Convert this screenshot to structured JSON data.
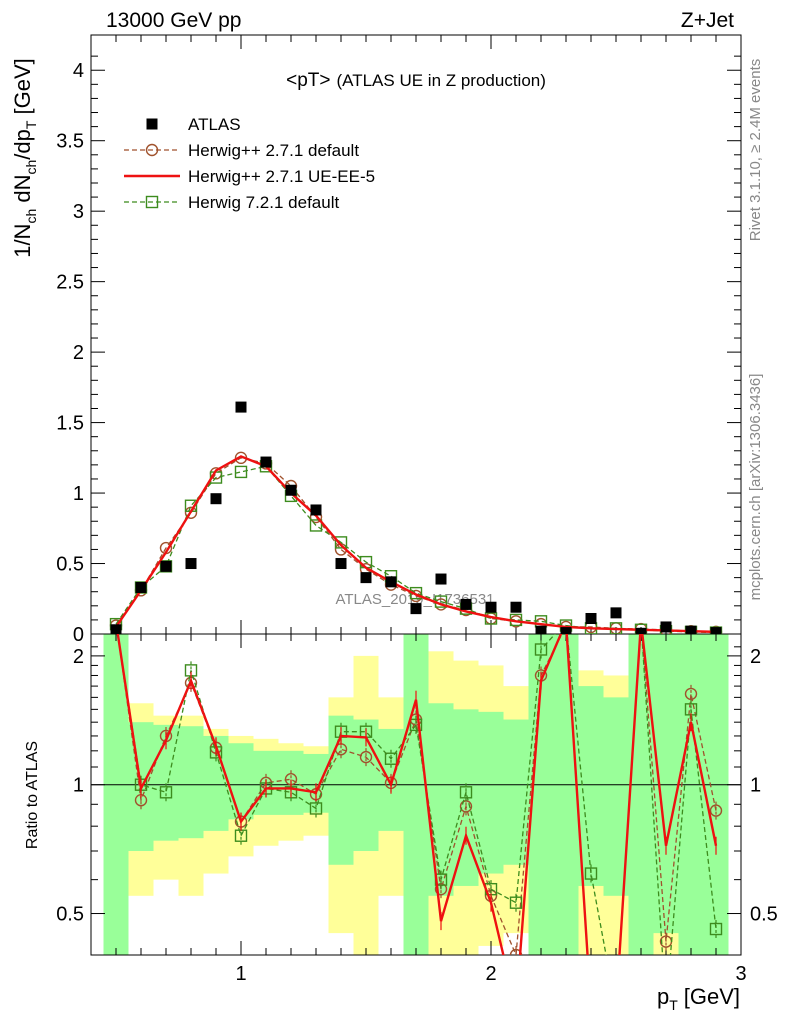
{
  "header": {
    "left": "13000 GeV pp",
    "right": "Z+Jet"
  },
  "side": {
    "rivet": "Rivet 3.1.10, ≥ 2.4M events",
    "mcplots": "mcplots.cern.ch [arXiv:1306.3436]"
  },
  "chart_data": {
    "type": "scatter",
    "title": "<pT> (ATLAS UE in Z production)",
    "title_main": "<pT>",
    "title_sub": "(ATLAS UE in Z production)",
    "watermark": "ATLAS_2019_I1736531",
    "xlabel_main": "p",
    "xlabel_sub": "T",
    "xlabel_unit": "[GeV]",
    "ylabel_parts": [
      "1/N",
      "ch",
      " dN",
      "ch",
      "/dp",
      "T",
      " [GeV]"
    ],
    "ratio_ylabel": "Ratio to ATLAS",
    "xlim": [
      0.4,
      3.0
    ],
    "ylim": [
      0,
      4.25
    ],
    "ratio_ylim": [
      0.4,
      2.25
    ],
    "x_ticks": [
      "1",
      "2",
      "3"
    ],
    "y_ticks": [
      "0",
      "0.5",
      "1",
      "1.5",
      "2",
      "2.5",
      "3",
      "3.5",
      "4"
    ],
    "ratio_ticks": [
      "0.5",
      "1",
      "2"
    ],
    "legend_position": "top-left",
    "x": [
      0.5,
      0.6,
      0.7,
      0.8,
      0.9,
      1.0,
      1.1,
      1.2,
      1.3,
      1.4,
      1.5,
      1.6,
      1.7,
      1.8,
      1.9,
      2.0,
      2.1,
      2.2,
      2.3,
      2.4,
      2.5,
      2.6,
      2.7,
      2.8,
      2.9
    ],
    "series": [
      {
        "name": "ATLAS",
        "color": "#000000",
        "marker": "square-filled",
        "values": [
          0.03,
          0.33,
          0.48,
          0.5,
          0.96,
          1.61,
          1.22,
          1.02,
          0.88,
          0.5,
          0.4,
          0.37,
          0.18,
          0.39,
          0.21,
          0.19,
          0.19,
          0.02,
          0.01,
          0.11,
          0.15,
          0.005,
          0.05,
          0.02,
          0.01
        ]
      },
      {
        "name": "Herwig++ 2.7.1 default",
        "color": "#a0522d",
        "marker": "circle-open",
        "dashed": true,
        "values": [
          0.06,
          0.31,
          0.61,
          0.86,
          1.14,
          1.25,
          1.21,
          1.05,
          0.83,
          0.6,
          0.46,
          0.35,
          0.27,
          0.21,
          0.17,
          0.11,
          0.09,
          0.07,
          0.05,
          0.05,
          0.04,
          0.035,
          0.03,
          0.02,
          0.015
        ]
      },
      {
        "name": "Herwig++ 2.7.1 UE-EE-5",
        "color": "#ee1111",
        "marker": "none",
        "values": [
          0.05,
          0.31,
          0.58,
          0.87,
          1.16,
          1.26,
          1.19,
          1.0,
          0.84,
          0.63,
          0.47,
          0.37,
          0.28,
          0.21,
          0.16,
          0.12,
          0.09,
          0.07,
          0.05,
          0.04,
          0.035,
          0.03,
          0.025,
          0.02,
          0.015
        ]
      },
      {
        "name": "Herwig 7.2.1 default",
        "color": "#3d8c1e",
        "marker": "square-open",
        "dashed": true,
        "values": [
          0.07,
          0.33,
          0.48,
          0.91,
          1.11,
          1.15,
          1.19,
          0.98,
          0.77,
          0.65,
          0.51,
          0.41,
          0.29,
          0.23,
          0.18,
          0.11,
          0.1,
          0.09,
          0.06,
          0.04,
          0.04,
          0.03,
          0.02,
          0.015,
          0.01
        ]
      }
    ],
    "ratio": {
      "Herwig++ 2.7.1 default": [
        2.4,
        0.92,
        1.3,
        1.73,
        1.22,
        0.82,
        1.01,
        1.03,
        0.95,
        1.21,
        1.16,
        1.01,
        1.42,
        0.57,
        0.89,
        0.55,
        0.4,
        1.8,
        2.35,
        0.3,
        0.3,
        2.4,
        0.43,
        1.63,
        0.87
      ],
      "Herwig++ 2.7.1 UE-EE-5": [
        2.4,
        0.98,
        1.27,
        1.75,
        1.23,
        0.82,
        0.98,
        0.98,
        0.96,
        1.3,
        1.29,
        1.0,
        1.58,
        0.48,
        0.76,
        0.53,
        0.3,
        1.75,
        2.4,
        0.3,
        0.3,
        2.4,
        0.72,
        1.4,
        0.72
      ],
      "Herwig 7.2.1 default": [
        2.4,
        1.0,
        0.96,
        1.85,
        1.19,
        0.76,
        0.98,
        0.96,
        0.88,
        1.33,
        1.33,
        1.15,
        1.38,
        0.6,
        0.96,
        0.57,
        0.53,
        2.07,
        2.4,
        0.62,
        0.3,
        2.4,
        0.3,
        1.5,
        0.46
      ]
    },
    "atlas_band_green": [
      [
        0.3,
        2.4
      ],
      [
        0.7,
        1.4
      ],
      [
        0.74,
        1.38
      ],
      [
        0.75,
        1.37
      ],
      [
        0.78,
        1.3
      ],
      [
        0.83,
        1.25
      ],
      [
        0.85,
        1.2
      ],
      [
        0.85,
        1.2
      ],
      [
        0.86,
        1.18
      ],
      [
        0.65,
        1.45
      ],
      [
        0.7,
        1.42
      ],
      [
        0.78,
        1.35
      ],
      [
        0.3,
        2.4
      ],
      [
        0.55,
        1.55
      ],
      [
        0.58,
        1.5
      ],
      [
        0.62,
        1.48
      ],
      [
        0.65,
        1.42
      ],
      [
        0.3,
        2.4
      ],
      [
        0.4,
        2.4
      ],
      [
        0.58,
        1.7
      ],
      [
        0.55,
        1.6
      ],
      [
        0.3,
        2.4
      ],
      [
        0.45,
        2.4
      ],
      [
        0.3,
        2.4
      ],
      [
        0.3,
        2.4
      ]
    ],
    "atlas_band_yellow": [
      [
        0.3,
        2.4
      ],
      [
        0.55,
        1.55
      ],
      [
        0.6,
        1.45
      ],
      [
        0.55,
        1.45
      ],
      [
        0.62,
        1.35
      ],
      [
        0.68,
        1.3
      ],
      [
        0.72,
        1.28
      ],
      [
        0.74,
        1.25
      ],
      [
        0.76,
        1.23
      ],
      [
        0.45,
        1.6
      ],
      [
        0.3,
        2.0
      ],
      [
        0.55,
        1.6
      ],
      [
        0.3,
        2.4
      ],
      [
        0.4,
        2.05
      ],
      [
        0.4,
        1.95
      ],
      [
        0.42,
        1.9
      ],
      [
        0.45,
        1.7
      ],
      [
        0.3,
        2.4
      ],
      [
        0.3,
        2.4
      ],
      [
        0.4,
        1.85
      ],
      [
        0.38,
        1.8
      ],
      [
        0.3,
        2.4
      ],
      [
        0.3,
        2.4
      ],
      [
        0.3,
        2.4
      ],
      [
        0.3,
        2.4
      ]
    ]
  }
}
